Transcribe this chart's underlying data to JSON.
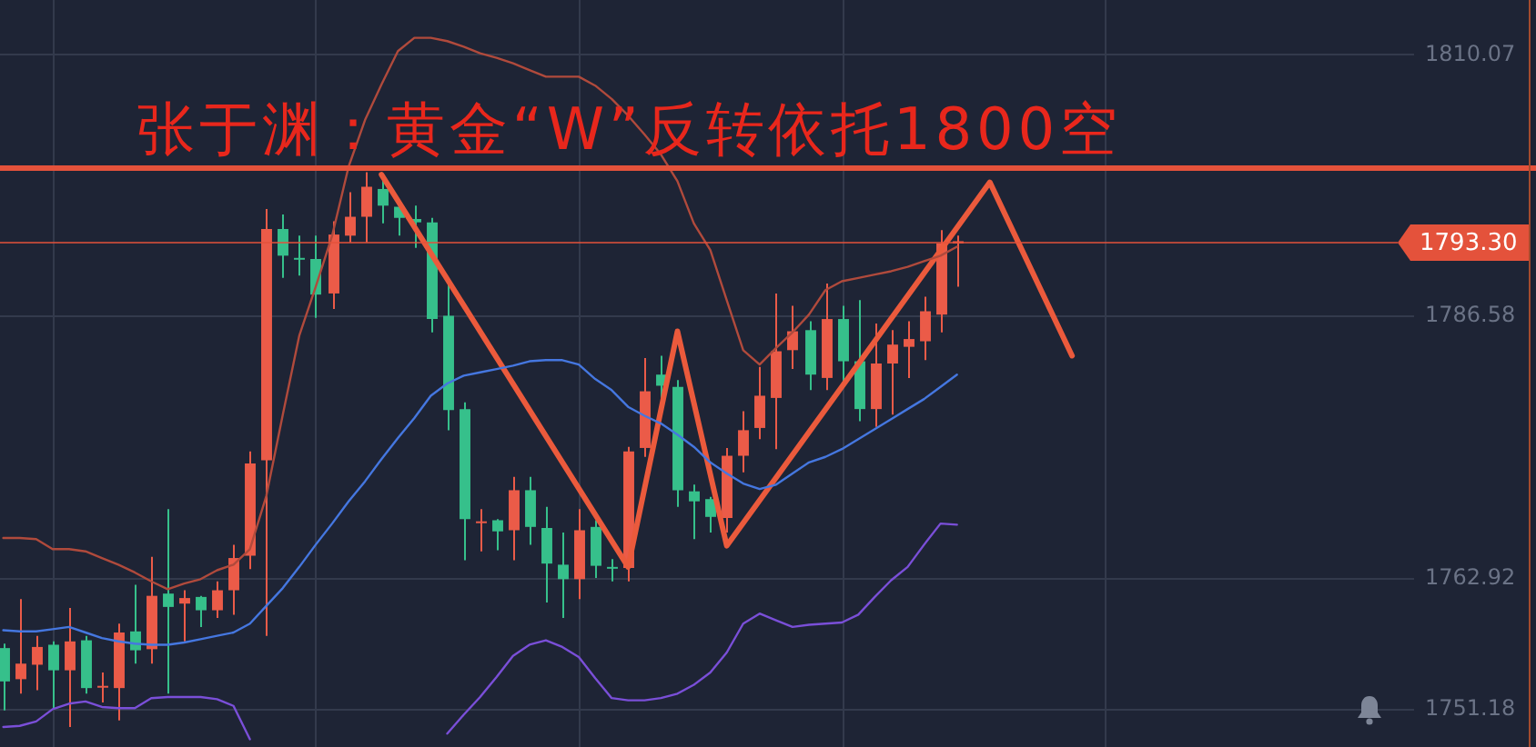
{
  "chart_data": {
    "type": "candlestick",
    "title": "张于渊：黄金“W”反转依托1800空",
    "categories": [
      null,
      null,
      null,
      null,
      null,
      null,
      null,
      null,
      null,
      null,
      null,
      null,
      null,
      null,
      null,
      null,
      null,
      null,
      null,
      null,
      null,
      null,
      null,
      null,
      null,
      null,
      null,
      null,
      null,
      null,
      null,
      null,
      null,
      null,
      null,
      null,
      null,
      null,
      null,
      null,
      null,
      null,
      null,
      null,
      null,
      null,
      null,
      null,
      null,
      null,
      null,
      null,
      null,
      null,
      null,
      null,
      null,
      null,
      null,
      null,
      null,
      null,
      null,
      null,
      null,
      null,
      null,
      null,
      null,
      null,
      null,
      null,
      null,
      null,
      null,
      null,
      null,
      null,
      null,
      null,
      null,
      null,
      null,
      null,
      null,
      null
    ],
    "ohlc": [
      [
        1756.7,
        1757.1,
        1751.1,
        1753.7
      ],
      [
        1753.9,
        1761.1,
        1752.6,
        1755.3
      ],
      [
        1755.2,
        1757.8,
        1752.9,
        1756.8
      ],
      [
        1757.0,
        1757.3,
        1751.3,
        1754.7
      ],
      [
        1754.7,
        1760.3,
        1749.6,
        1757.3
      ],
      [
        1757.4,
        1757.8,
        1752.6,
        1753.1
      ],
      [
        1753.3,
        1754.5,
        1751.8,
        1753.3
      ],
      [
        1753.1,
        1758.9,
        1750.2,
        1758.1
      ],
      [
        1758.2,
        1762.4,
        1755.3,
        1756.5
      ],
      [
        1756.6,
        1764.9,
        1755.3,
        1761.4
      ],
      [
        1761.6,
        1769.2,
        1752.6,
        1760.4
      ],
      [
        1760.7,
        1761.9,
        1757.3,
        1761.2
      ],
      [
        1761.3,
        1761.4,
        1758.6,
        1760.1
      ],
      [
        1760.1,
        1762.7,
        1759.4,
        1761.9
      ],
      [
        1761.9,
        1766.0,
        1759.7,
        1764.8
      ],
      [
        1765.0,
        1774.4,
        1763.8,
        1773.3
      ],
      [
        1773.6,
        1796.2,
        1757.8,
        1794.4
      ],
      [
        1794.4,
        1795.7,
        1790.0,
        1792.0
      ],
      [
        1791.8,
        1793.8,
        1790.2,
        1791.7
      ],
      [
        1791.7,
        1793.8,
        1786.4,
        1788.5
      ],
      [
        1788.6,
        1795.1,
        1787.2,
        1793.9
      ],
      [
        1793.8,
        1797.7,
        1793.2,
        1795.5
      ],
      [
        1795.5,
        1799.5,
        1793.2,
        1798.2
      ],
      [
        1798.0,
        1799.0,
        1794.9,
        1796.5
      ],
      [
        1796.4,
        1796.8,
        1793.8,
        1795.4
      ],
      [
        1795.3,
        1796.5,
        1792.7,
        1795.0
      ],
      [
        1795.0,
        1795.4,
        1785.1,
        1786.3
      ],
      [
        1786.6,
        1789.5,
        1776.3,
        1778.1
      ],
      [
        1778.2,
        1778.8,
        1764.6,
        1768.3
      ],
      [
        1768.0,
        1769.2,
        1765.4,
        1768.1
      ],
      [
        1768.2,
        1768.3,
        1765.5,
        1767.2
      ],
      [
        1767.3,
        1772.1,
        1764.6,
        1770.9
      ],
      [
        1770.9,
        1772.1,
        1766.0,
        1767.6
      ],
      [
        1767.5,
        1769.4,
        1760.8,
        1764.3
      ],
      [
        1764.2,
        1767.1,
        1759.4,
        1762.9
      ],
      [
        1762.9,
        1769.2,
        1761.1,
        1767.3
      ],
      [
        1767.6,
        1768.2,
        1763.0,
        1764.1
      ],
      [
        1764.0,
        1764.7,
        1762.7,
        1763.9
      ],
      [
        1763.9,
        1774.8,
        1762.7,
        1774.4
      ],
      [
        1774.7,
        1782.8,
        1773.9,
        1779.8
      ],
      [
        1781.3,
        1783.0,
        1779.1,
        1780.3
      ],
      [
        1780.2,
        1780.8,
        1769.4,
        1770.9
      ],
      [
        1770.8,
        1771.4,
        1766.5,
        1769.9
      ],
      [
        1770.1,
        1770.3,
        1767.1,
        1768.5
      ],
      [
        1768.4,
        1774.7,
        1767.1,
        1774.0
      ],
      [
        1774.0,
        1778.0,
        1772.5,
        1776.3
      ],
      [
        1776.5,
        1782.0,
        1775.5,
        1779.4
      ],
      [
        1779.2,
        1788.6,
        1774.6,
        1783.4
      ],
      [
        1783.5,
        1787.5,
        1781.8,
        1785.2
      ],
      [
        1785.3,
        1786.1,
        1779.9,
        1781.3
      ],
      [
        1781.0,
        1789.5,
        1779.9,
        1786.3
      ],
      [
        1786.3,
        1787.5,
        1780.4,
        1782.5
      ],
      [
        1782.5,
        1788.0,
        1777.1,
        1778.2
      ],
      [
        1778.2,
        1785.9,
        1776.6,
        1782.3
      ],
      [
        1782.3,
        1785.3,
        1777.7,
        1784.0
      ],
      [
        1783.8,
        1786.1,
        1781.0,
        1784.5
      ],
      [
        1784.3,
        1788.3,
        1782.6,
        1787.0
      ],
      [
        1786.7,
        1794.3,
        1785.1,
        1793.1
      ],
      [
        1793.1,
        1793.8,
        1789.2,
        1793.3
      ],
      null,
      null,
      null,
      null,
      null,
      null,
      null,
      null,
      null,
      null,
      null,
      null,
      null,
      null,
      null,
      null,
      null,
      null,
      null,
      null,
      null,
      null,
      null,
      null,
      null,
      null,
      null
    ],
    "colors": [
      "#36c08b",
      "#eb5b48",
      "#eb5b48",
      "#36c08b",
      "#eb5b48",
      "#36c08b",
      "#eb5b48",
      "#eb5b48",
      "#36c08b",
      "#eb5b48",
      "#36c08b",
      "#eb5b48",
      "#36c08b",
      "#eb5b48",
      "#eb5b48",
      "#eb5b48",
      "#eb5b48",
      "#36c08b",
      "#36c08b",
      "#36c08b",
      "#eb5b48",
      "#eb5b48",
      "#eb5b48",
      "#36c08b",
      "#36c08b",
      "#36c08b",
      "#36c08b",
      "#36c08b",
      "#36c08b",
      "#eb5b48",
      "#36c08b",
      "#eb5b48",
      "#36c08b",
      "#36c08b",
      "#36c08b",
      "#eb5b48",
      "#36c08b",
      "#36c08b",
      "#eb5b48",
      "#eb5b48",
      "#36c08b",
      "#36c08b",
      "#36c08b",
      "#36c08b",
      "#eb5b48",
      "#eb5b48",
      "#eb5b48",
      "#eb5b48",
      "#eb5b48",
      "#36c08b",
      "#eb5b48",
      "#36c08b",
      "#36c08b",
      "#eb5b48",
      "#eb5b48",
      "#eb5b48",
      "#eb5b48",
      "#eb5b48",
      "#eb5b48",
      null,
      null,
      null,
      null,
      null,
      null,
      null,
      null,
      null,
      null,
      null,
      null,
      null,
      null,
      null,
      null,
      null,
      null,
      null,
      null,
      null,
      null,
      null,
      null,
      null,
      null,
      null
    ],
    "series": [
      {
        "type": "line",
        "color": "#b04a3c",
        "values": [
          1766.6,
          1766.6,
          1766.5,
          1765.6,
          1765.6,
          1765.4,
          1764.8,
          1764.2,
          1763.5,
          1762.7,
          1762.0,
          1762.5,
          1762.9,
          1763.7,
          1764.2,
          1765.6,
          1770.4,
          1777.7,
          1784.8,
          1789.2,
          1793.8,
          1800.0,
          1804.2,
          1807.4,
          1810.4,
          1811.6,
          1811.6,
          1811.3,
          1810.8,
          1810.2,
          1809.8,
          1809.3,
          1808.7,
          1808.1,
          1808.1,
          1808.1,
          1807.3,
          1806.1,
          1804.6,
          1802.9,
          1801.1,
          1798.7,
          1794.9,
          1792.5,
          1788.0,
          1783.5,
          1782.2,
          1783.7,
          1785.1,
          1786.7,
          1788.9,
          1789.7,
          1790.0,
          1790.3,
          1790.6,
          1791.0,
          1791.5,
          1792.0,
          1792.8,
          null,
          null,
          null,
          null,
          null,
          null,
          null,
          null,
          null,
          null,
          null,
          null,
          null,
          null,
          null,
          null,
          null,
          null,
          null,
          null,
          null,
          null,
          null,
          null,
          null,
          null,
          null
        ]
      },
      {
        "type": "line",
        "color": "#4577e0",
        "values": [
          1758.3,
          1758.2,
          1758.2,
          1758.4,
          1758.6,
          1758.1,
          1757.6,
          1757.3,
          1757.1,
          1757.0,
          1757.0,
          1757.2,
          1757.5,
          1757.8,
          1758.1,
          1758.9,
          1760.5,
          1762.1,
          1764.0,
          1766.0,
          1767.9,
          1769.9,
          1771.7,
          1773.7,
          1775.6,
          1777.4,
          1779.4,
          1780.5,
          1781.2,
          1781.5,
          1781.8,
          1782.1,
          1782.5,
          1782.6,
          1782.6,
          1782.2,
          1780.9,
          1779.9,
          1778.4,
          1777.6,
          1776.9,
          1775.9,
          1774.8,
          1773.4,
          1772.4,
          1771.5,
          1771.0,
          1771.4,
          1772.4,
          1773.4,
          1773.9,
          1774.6,
          1775.5,
          1776.4,
          1777.3,
          1778.2,
          1779.1,
          1780.2,
          1781.3,
          null,
          null,
          null,
          null,
          null,
          null,
          null,
          null,
          null,
          null,
          null,
          null,
          null,
          null,
          null,
          null,
          null,
          null,
          null,
          null,
          null,
          null,
          null,
          null,
          null,
          null,
          null
        ]
      },
      {
        "type": "line",
        "color": "#7a4fd8",
        "values": [
          1749.6,
          1749.7,
          1750.1,
          1751.2,
          1751.7,
          1751.9,
          1751.4,
          1751.3,
          1751.3,
          1752.2,
          1752.3,
          1752.3,
          1752.3,
          1752.1,
          1751.5,
          1748.5,
          null,
          null,
          null,
          null,
          null,
          null,
          null,
          null,
          null,
          null,
          null,
          null,
          null,
          null,
          null,
          null,
          null,
          null,
          null,
          null,
          null,
          null,
          null,
          null,
          null,
          null,
          null,
          null,
          null,
          null,
          null,
          null,
          null,
          null,
          null,
          null,
          null,
          null,
          null,
          null,
          null,
          null,
          null,
          null,
          null,
          null,
          null,
          null,
          null,
          null,
          null,
          null,
          null,
          null,
          null,
          null,
          null,
          null,
          null,
          null,
          null,
          null,
          null,
          null,
          null,
          null,
          null,
          null,
          null,
          null
        ]
      },
      {
        "type": "line",
        "color": "#7a4fd8",
        "values": [
          null,
          null,
          null,
          null,
          null,
          null,
          null,
          null,
          null,
          null,
          null,
          null,
          null,
          null,
          null,
          null,
          null,
          null,
          null,
          null,
          null,
          null,
          null,
          null,
          null,
          null,
          null,
          1749.0,
          1750.7,
          1752.3,
          1754.1,
          1756.0,
          1757.0,
          1757.4,
          1756.8,
          1755.9,
          1754.0,
          1752.2,
          1752.0,
          1752.0,
          1752.2,
          1752.6,
          1753.4,
          1754.5,
          1756.3,
          1758.9,
          1759.8,
          1759.2,
          1758.6,
          1758.8,
          1758.9,
          1759.0,
          1759.7,
          1761.3,
          1762.8,
          1764.0,
          1766.0,
          1767.9,
          1767.8,
          null,
          null,
          null,
          null,
          null,
          null,
          null,
          null,
          null,
          null,
          null,
          null,
          null,
          null,
          null,
          null,
          null,
          null,
          null,
          null,
          null,
          null,
          null,
          null,
          null,
          null,
          null
        ]
      },
      {
        "type": "line",
        "color": "#eb5a3c",
        "values": [
          null,
          null,
          null,
          null,
          null,
          null,
          null,
          null,
          null,
          null,
          null,
          null,
          null,
          null,
          null,
          null,
          null,
          null,
          null,
          null,
          null,
          null,
          null,
          1799.3,
          null,
          null,
          null,
          null,
          null,
          null,
          null,
          null,
          null,
          null,
          null,
          null,
          null,
          null,
          1764.0,
          null,
          null,
          1785.2,
          null,
          null,
          1765.9,
          null,
          null,
          null,
          null,
          null,
          null,
          null,
          null,
          null,
          null,
          null,
          null,
          null,
          null,
          null,
          1798.6,
          null,
          null,
          null,
          null,
          1783.0,
          null,
          null,
          null,
          null,
          null,
          null,
          null,
          null,
          null,
          null,
          null,
          null,
          null,
          null,
          null,
          null,
          null,
          null,
          null,
          null
        ]
      }
    ],
    "ylim": [
      1747.8,
      1815.0
    ],
    "yticks": [
      1751.18,
      1762.92,
      1786.58,
      1810.07
    ],
    "ref_lines": [
      {
        "axis": "y",
        "value": 1800,
        "color": "#e4523b"
      },
      {
        "axis": "y",
        "value": 1793.3,
        "label": "1793.30",
        "color": "#e4523b"
      }
    ],
    "grid": true,
    "tick_labels": "y"
  }
}
